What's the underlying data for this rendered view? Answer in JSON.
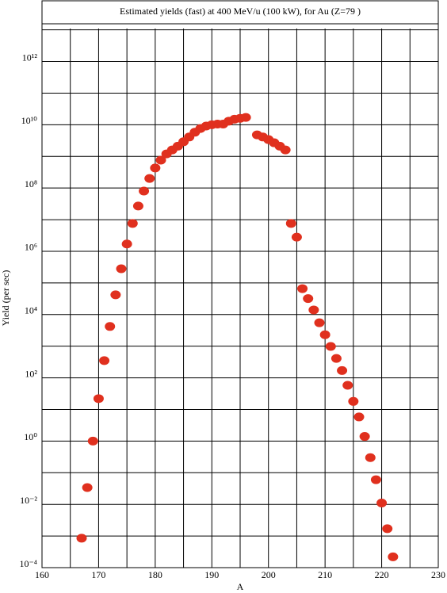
{
  "chart_data": {
    "type": "scatter",
    "title": "Estimated yields (fast) at 400 MeV/u (100 kW), for Au (Z=79 )",
    "x_label": "A",
    "y_label": "Yield (per sec)",
    "log_y": true,
    "grid": true,
    "color": "#e0301e",
    "x": [
      167,
      168,
      169,
      170,
      171,
      172,
      173,
      174,
      175,
      176,
      177,
      178,
      179,
      180,
      181,
      182,
      183,
      184,
      185,
      186,
      187,
      188,
      189,
      190,
      191,
      192,
      193,
      194,
      195,
      196,
      198,
      199,
      200,
      201,
      202,
      203,
      204,
      205,
      206,
      207,
      208,
      209,
      210,
      211,
      212,
      213,
      214,
      215,
      216,
      217,
      218,
      219,
      220,
      221,
      222
    ],
    "values": [
      0.00085,
      0.034,
      1.0,
      22,
      350,
      4200,
      42000,
      280000,
      1700000,
      7600000,
      27000000,
      80000000,
      200000000,
      430000000,
      760000000,
      1200000000,
      1600000000,
      2100000000,
      2900000000,
      4100000000,
      5800000000,
      7600000000,
      9100000000,
      10000000000,
      10500000000,
      10500000000,
      13000000000,
      15000000000,
      16000000000,
      17000000000,
      4800000000,
      4100000000,
      3400000000,
      2700000000,
      2100000000,
      1600000000,
      7600000,
      2800000,
      66000,
      32000,
      14000,
      5500,
      2300,
      980,
      410,
      170,
      58,
      18,
      5.8,
      1.4,
      0.3,
      0.06,
      0.011,
      0.0017,
      0.00022
    ],
    "xlim": [
      160,
      230
    ],
    "xticks": [
      160,
      170,
      180,
      190,
      200,
      210,
      220,
      230
    ],
    "xminor": [
      165,
      175,
      185,
      195,
      205,
      215,
      225
    ],
    "ylim": [
      0.0001,
      11000000000000
    ],
    "yticks": [
      {
        "value": 0.0001,
        "label": "10⁻⁴"
      },
      {
        "value": 0.01,
        "label": "10⁻²"
      },
      {
        "value": 1,
        "label": "10⁰"
      },
      {
        "value": 100,
        "label": "10²"
      },
      {
        "value": 10000,
        "label": "10⁴"
      },
      {
        "value": 1000000,
        "label": "10⁶"
      },
      {
        "value": 100000000,
        "label": "10⁸"
      },
      {
        "value": 10000000000,
        "label": "10¹⁰"
      },
      {
        "value": 1000000000000,
        "label": "10¹²"
      }
    ],
    "yminor": [
      0.001,
      0.1,
      10,
      1000,
      100000,
      10000000,
      1000000000,
      100000000000,
      10000000000000
    ]
  }
}
